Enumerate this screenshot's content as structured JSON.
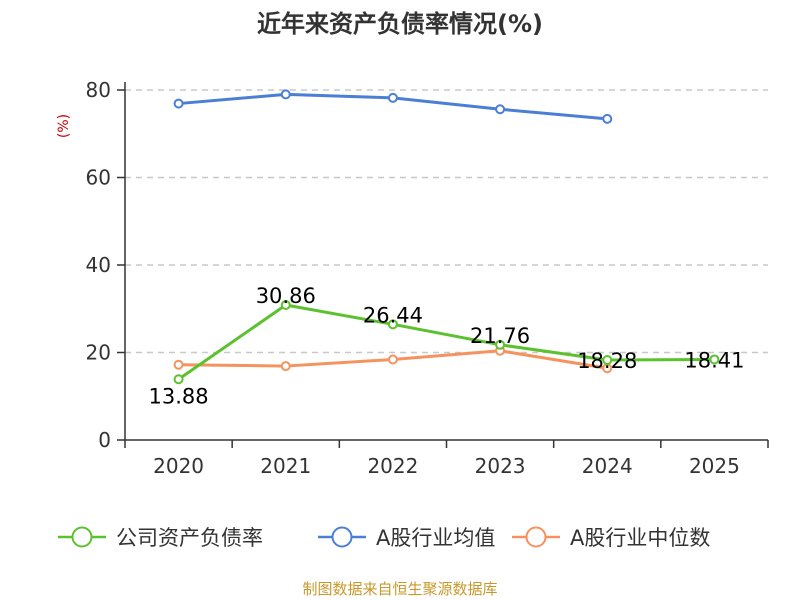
{
  "chart_data": {
    "type": "line",
    "title": "近年来资产负债率情况(%)",
    "ylabel": "(%)",
    "ylim": [
      0,
      80
    ],
    "yticks": [
      0,
      20,
      40,
      60,
      80
    ],
    "categories": [
      "2020",
      "2021",
      "2022",
      "2023",
      "2024",
      "2025"
    ],
    "grid": true,
    "legend_position": "bottom",
    "series": [
      {
        "name": "公司资产负债率",
        "color": "#5cc12f",
        "values": [
          13.88,
          30.86,
          26.44,
          21.76,
          18.28,
          18.41
        ],
        "labels": [
          "13.88",
          "30.86",
          "26.44",
          "21.76",
          "18.28",
          "18.41"
        ]
      },
      {
        "name": "A股行业均值",
        "color": "#4b7fd6",
        "values": [
          76.9,
          79.0,
          78.2,
          75.6,
          73.4,
          null
        ]
      },
      {
        "name": "A股行业中位数",
        "color": "#f5925e",
        "values": [
          17.2,
          16.9,
          18.4,
          20.4,
          16.4,
          null
        ]
      }
    ]
  },
  "footer": {
    "source": "制图数据来自恒生聚源数据库"
  }
}
